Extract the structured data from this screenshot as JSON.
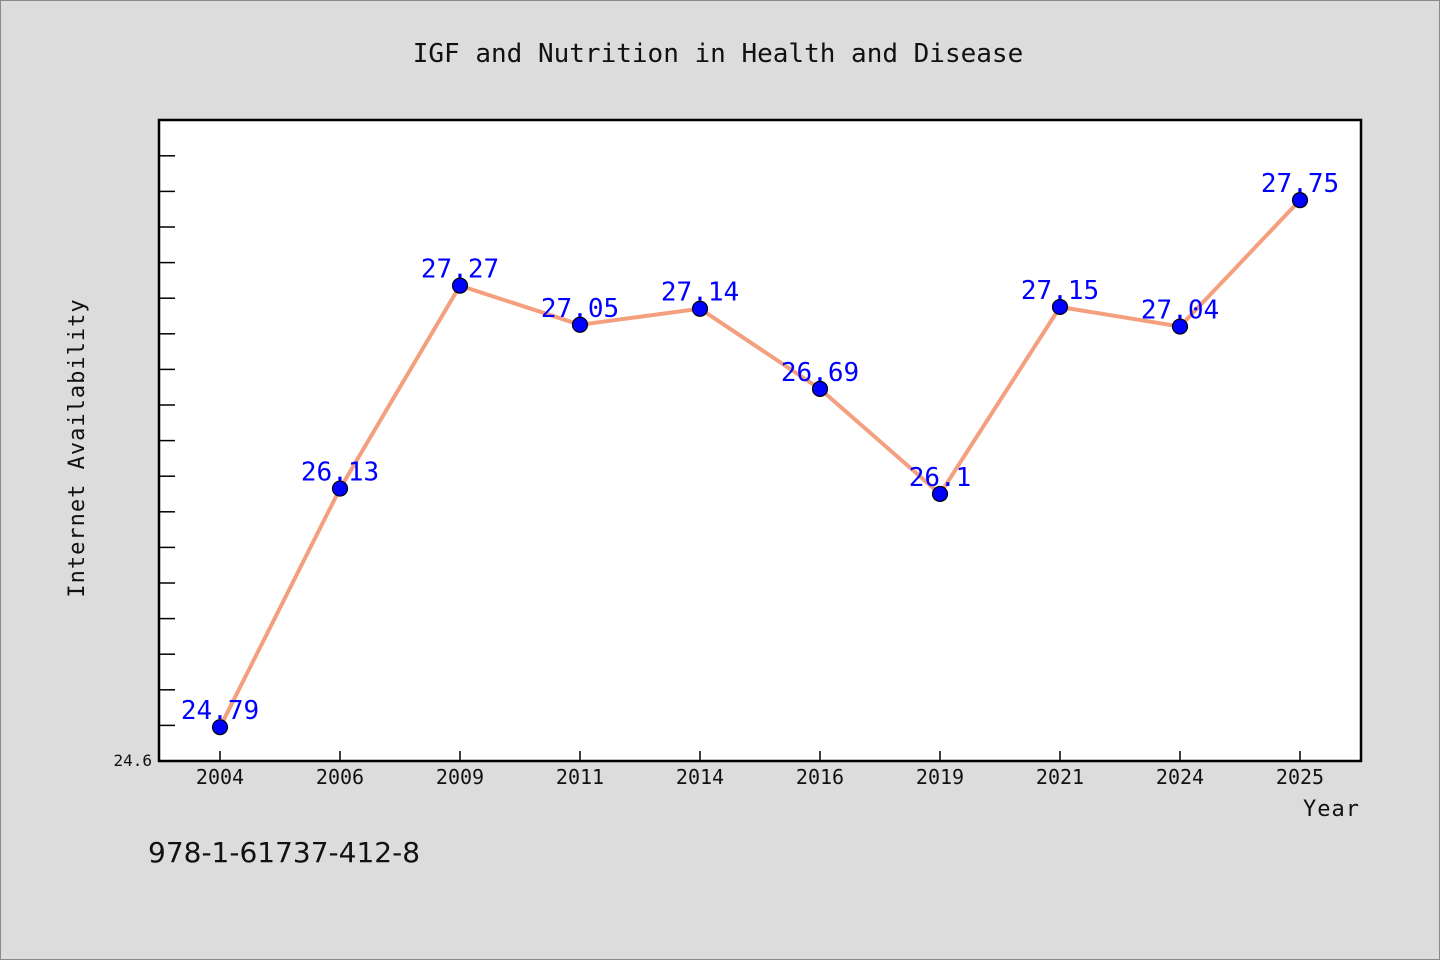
{
  "chart_data": {
    "type": "line",
    "title": "IGF and Nutrition in Health and Disease",
    "xlabel": "Year",
    "ylabel": "Internet Availability",
    "categories": [
      "2004",
      "2006",
      "2009",
      "2011",
      "2014",
      "2016",
      "2019",
      "2021",
      "2024",
      "2025"
    ],
    "values": [
      24.79,
      26.13,
      27.27,
      27.05,
      27.14,
      26.69,
      26.1,
      27.15,
      27.04,
      27.75
    ],
    "data_labels": [
      "24.79",
      "26.13",
      "27.27",
      "27.05",
      "27.14",
      "26.69",
      "26.1",
      "27.15",
      "27.04",
      "27.75"
    ],
    "ylim": [
      24.6,
      28.2
    ],
    "y_tick_label": "24.6",
    "grid": false,
    "colors": {
      "line": "#f4a07e",
      "marker": "#0000ff",
      "data_label": "#0000ff",
      "plot_background": "#ffffff",
      "page_background": "#dcdcdc"
    }
  },
  "footer": {
    "isbn": "978-1-61737-412-8"
  }
}
